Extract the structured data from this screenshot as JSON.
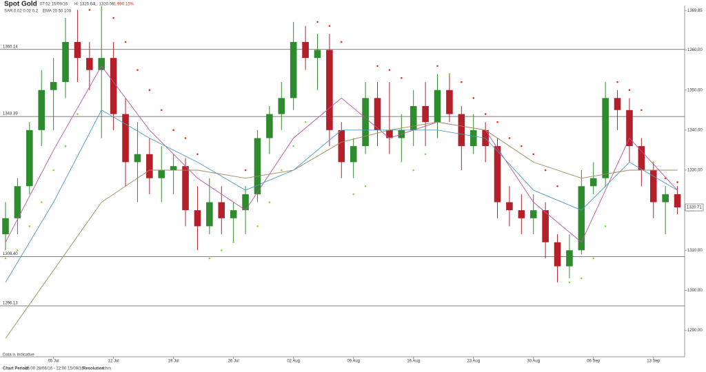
{
  "header": {
    "title": "Spot Gold",
    "time": "07:52 15/09/16",
    "high": "H: 1325.64",
    "low": "L: 1320.06",
    "change": "-1.99",
    "change_pct": "-0.15%",
    "sar": "SAR 0.02 0.02 0.2",
    "ema": "EMA 20 50 100"
  },
  "footer": {
    "period_label": "Chart Period:",
    "period": "16:00 28/06/16 - 12:00 15/09/16",
    "resolution_label": "Resolution:",
    "resolution": "4 hrs",
    "note": "Data is Indicative"
  },
  "chart_data": {
    "type": "candlestick",
    "up_color": "#2e8b2e",
    "down_color": "#b3202a",
    "xlim": [
      -0.46,
      56.6
    ],
    "ylim": [
      1283.4,
      1371.1
    ],
    "xticks": [
      {
        "value": 4,
        "label": "05 Jul"
      },
      {
        "value": 9,
        "label": "12 Jul"
      },
      {
        "value": 14,
        "label": "19 Jul"
      },
      {
        "value": 19,
        "label": "26 Jul"
      },
      {
        "value": 24,
        "label": "02 Aug"
      },
      {
        "value": 29,
        "label": "09 Aug"
      },
      {
        "value": 34,
        "label": "16 Aug"
      },
      {
        "value": 39,
        "label": "23 Aug"
      },
      {
        "value": 44,
        "label": "30 Aug"
      },
      {
        "value": 49,
        "label": "06 Sep"
      },
      {
        "value": 54,
        "label": "13 Sep"
      }
    ],
    "yticks": [
      1369.85,
      {
        "value": 1360,
        "label": "1360.00"
      },
      {
        "value": 1350,
        "label": "1350.00"
      },
      {
        "value": 1340,
        "label": "1340.00"
      },
      {
        "value": 1330,
        "label": "1330.00"
      },
      {
        "value": 1320,
        "label": "1320.00"
      },
      {
        "value": 1310,
        "label": "1310.00"
      },
      {
        "value": 1300,
        "label": "1300.00"
      },
      {
        "value": 1290,
        "label": "1290.00"
      }
    ],
    "levels": [
      1360.14,
      1343.39,
      {
        "value": 1308.4,
        "label": "1308.40"
      },
      1296.13
    ],
    "open": [
      1314,
      1318,
      1326,
      1340,
      1350,
      1352,
      1362,
      1358,
      1355,
      1358,
      1344,
      1332,
      1334,
      1328,
      1330,
      1331,
      1320,
      1316,
      1322,
      1318,
      1320,
      1324,
      1338,
      1344,
      1348,
      1362,
      1358,
      1360,
      1340,
      1332,
      1336,
      1348,
      1340,
      1338,
      1340,
      1346,
      1342,
      1350,
      1344,
      1336,
      1340,
      1336,
      1322,
      1320,
      1318,
      1320,
      1312,
      1306,
      1310,
      1326,
      1328,
      1348,
      1345,
      1336,
      1330,
      1322,
      1324
    ],
    "high": [
      1322,
      1328,
      1342,
      1355,
      1358,
      1368,
      1370,
      1362,
      1371,
      1362,
      1348,
      1342,
      1338,
      1336,
      1334,
      1333,
      1326,
      1328,
      1326,
      1322,
      1326,
      1340,
      1346,
      1352,
      1367,
      1366,
      1364,
      1364,
      1342,
      1338,
      1352,
      1352,
      1352,
      1344,
      1350,
      1352,
      1354,
      1354,
      1346,
      1344,
      1342,
      1338,
      1326,
      1324,
      1324,
      1322,
      1314,
      1314,
      1330,
      1332,
      1352,
      1350,
      1348,
      1338,
      1332,
      1326,
      1326
    ],
    "low": [
      1310,
      1314,
      1324,
      1336,
      1340,
      1348,
      1352,
      1350,
      1338,
      1340,
      1326,
      1322,
      1324,
      1322,
      1324,
      1316,
      1310,
      1314,
      1314,
      1312,
      1314,
      1322,
      1334,
      1340,
      1345,
      1355,
      1350,
      1336,
      1328,
      1328,
      1334,
      1336,
      1334,
      1332,
      1336,
      1336,
      1338,
      1342,
      1330,
      1334,
      1332,
      1318,
      1316,
      1314,
      1314,
      1308,
      1302,
      1303,
      1309,
      1324,
      1326,
      1340,
      1332,
      1326,
      1318,
      1314,
      1319
    ],
    "close": [
      1318,
      1326,
      1340,
      1350,
      1352,
      1362,
      1358,
      1355,
      1358,
      1344,
      1332,
      1334,
      1328,
      1330,
      1331,
      1320,
      1316,
      1322,
      1318,
      1320,
      1324,
      1338,
      1344,
      1348,
      1362,
      1358,
      1360,
      1340,
      1332,
      1336,
      1348,
      1340,
      1338,
      1340,
      1346,
      1342,
      1350,
      1344,
      1336,
      1340,
      1336,
      1322,
      1320,
      1318,
      1320,
      1312,
      1306,
      1310,
      1326,
      1328,
      1348,
      1345,
      1336,
      1330,
      1322,
      1324,
      1320.71
    ],
    "sar": [
      1308,
      1310,
      1316,
      1322,
      1330,
      1336,
      1344,
      1370,
      1370,
      1368,
      1362,
      1355,
      1350,
      1345,
      1340,
      1338,
      1334,
      1308,
      1310,
      1312,
      1330,
      1316,
      1322,
      1330,
      1336,
      1342,
      1367,
      1366,
      1362,
      1324,
      1326,
      1356,
      1355,
      1353,
      1330,
      1334,
      1356,
      1354,
      1352,
      1348,
      1344,
      1342,
      1338,
      1336,
      1334,
      1330,
      1326,
      1302,
      1303,
      1308,
      1316,
      1352,
      1350,
      1345,
      1332,
      1328,
      1327
    ],
    "sar_colors": {
      "above": "#e8321e",
      "below": "#7ddc3a"
    },
    "series": [
      {
        "name": "EMA 20",
        "color": "#c2509e",
        "x": [
          0,
          4,
          8,
          12,
          16,
          20,
          24,
          28,
          32,
          36,
          40,
          44,
          48,
          52,
          56
        ],
        "values": [
          1312,
          1335,
          1356,
          1340,
          1328,
          1320,
          1338,
          1348,
          1338,
          1342,
          1340,
          1322,
          1312,
          1338,
          1325
        ]
      },
      {
        "name": "EMA 50",
        "color": "#4a9ac0",
        "x": [
          0,
          4,
          8,
          12,
          16,
          20,
          24,
          28,
          32,
          36,
          40,
          44,
          48,
          52,
          56
        ],
        "values": [
          1302,
          1322,
          1345,
          1338,
          1332,
          1325,
          1330,
          1340,
          1340,
          1340,
          1338,
          1325,
          1320,
          1332,
          1325
        ]
      },
      {
        "name": "EMA 100",
        "color": "#9c8a5a",
        "x": [
          0,
          4,
          8,
          12,
          16,
          20,
          24,
          28,
          32,
          36,
          40,
          44,
          48,
          52,
          56
        ],
        "values": [
          1288,
          1305,
          1322,
          1330,
          1330,
          1328,
          1330,
          1337,
          1340,
          1342,
          1340,
          1332,
          1328,
          1330,
          1330
        ]
      }
    ]
  }
}
